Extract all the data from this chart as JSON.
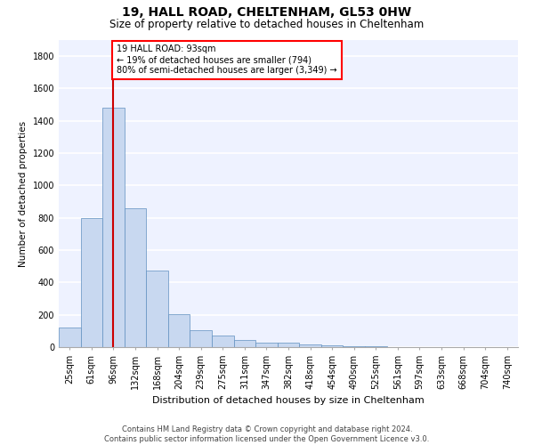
{
  "title1": "19, HALL ROAD, CHELTENHAM, GL53 0HW",
  "title2": "Size of property relative to detached houses in Cheltenham",
  "xlabel": "Distribution of detached houses by size in Cheltenham",
  "ylabel": "Number of detached properties",
  "categories": [
    "25sqm",
    "61sqm",
    "96sqm",
    "132sqm",
    "168sqm",
    "204sqm",
    "239sqm",
    "275sqm",
    "311sqm",
    "347sqm",
    "382sqm",
    "418sqm",
    "454sqm",
    "490sqm",
    "525sqm",
    "561sqm",
    "597sqm",
    "633sqm",
    "668sqm",
    "704sqm",
    "740sqm"
  ],
  "bar_heights": [
    120,
    800,
    1480,
    860,
    475,
    205,
    105,
    70,
    45,
    30,
    25,
    15,
    10,
    5,
    3,
    2,
    2,
    2,
    1,
    1,
    0
  ],
  "bar_color": "#c8d8f0",
  "bar_edge_color": "#6090c0",
  "vline_x": 2,
  "vline_color": "#cc0000",
  "annotation_line1": "19 HALL ROAD: 93sqm",
  "annotation_line2": "← 19% of detached houses are smaller (794)",
  "annotation_line3": "80% of semi-detached houses are larger (3,349) →",
  "ylim": [
    0,
    1900
  ],
  "yticks": [
    0,
    200,
    400,
    600,
    800,
    1000,
    1200,
    1400,
    1600,
    1800
  ],
  "background_color": "#eef2ff",
  "grid_color": "#ffffff",
  "footer": "Contains HM Land Registry data © Crown copyright and database right 2024.\nContains public sector information licensed under the Open Government Licence v3.0.",
  "title1_fontsize": 10,
  "title2_fontsize": 8.5,
  "xlabel_fontsize": 8,
  "ylabel_fontsize": 7.5,
  "tick_fontsize": 7,
  "annotation_fontsize": 7,
  "footer_fontsize": 6
}
